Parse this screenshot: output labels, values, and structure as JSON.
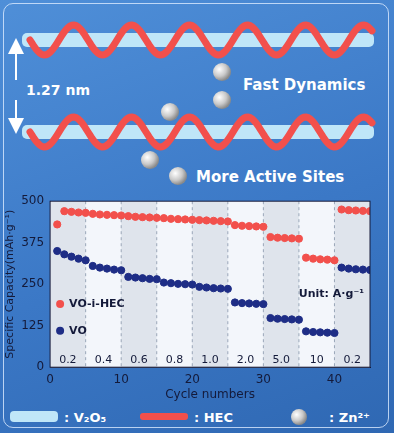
{
  "chart_data": {
    "type": "scatter",
    "x": [
      1,
      2,
      3,
      4,
      5,
      6,
      7,
      8,
      9,
      10,
      11,
      12,
      13,
      14,
      15,
      16,
      17,
      18,
      19,
      20,
      21,
      22,
      23,
      24,
      25,
      26,
      27,
      28,
      29,
      30,
      31,
      32,
      33,
      34,
      35,
      36,
      37,
      38,
      39,
      40,
      41,
      42,
      43,
      44,
      45
    ],
    "series": [
      {
        "name": "VO-i-HEC",
        "color": "#f2504c",
        "marker": "circle",
        "values": [
          430,
          470,
          468,
          466,
          465,
          462,
          460,
          459,
          458,
          457,
          455,
          453,
          452,
          451,
          450,
          449,
          447,
          446,
          445,
          444,
          443,
          442,
          441,
          440,
          439,
          428,
          426,
          425,
          424,
          423,
          392,
          390,
          389,
          388,
          387,
          330,
          327,
          325,
          324,
          322,
          475,
          473,
          472,
          471,
          470
        ]
      },
      {
        "name": "VO",
        "color": "#1e2d86",
        "marker": "circle",
        "values": [
          350,
          340,
          333,
          327,
          322,
          305,
          300,
          297,
          294,
          292,
          272,
          270,
          268,
          266,
          265,
          255,
          253,
          251,
          250,
          249,
          242,
          240,
          238,
          237,
          236,
          195,
          193,
          192,
          191,
          190,
          148,
          146,
          145,
          144,
          143,
          108,
          106,
          105,
          104,
          103,
          300,
          297,
          295,
          294,
          293
        ]
      }
    ],
    "xlabel": "Cycle numbers",
    "ylabel": "Specific Capacity(mAh·g⁻¹)",
    "xlim": [
      0,
      45
    ],
    "ylim": [
      0,
      500
    ],
    "xticks": [
      0,
      10,
      20,
      30,
      40
    ],
    "yticks": [
      0,
      125,
      250,
      375,
      500
    ],
    "grid": false,
    "legend": "lower left",
    "current_segments": [
      {
        "start": 0,
        "end": 5,
        "label": "0.2"
      },
      {
        "start": 5,
        "end": 10,
        "label": "0.4"
      },
      {
        "start": 10,
        "end": 15,
        "label": "0.6"
      },
      {
        "start": 15,
        "end": 20,
        "label": "0.8"
      },
      {
        "start": 20,
        "end": 25,
        "label": "1.0"
      },
      {
        "start": 25,
        "end": 30,
        "label": "2.0"
      },
      {
        "start": 30,
        "end": 35,
        "label": "5.0"
      },
      {
        "start": 35,
        "end": 40,
        "label": "10"
      },
      {
        "start": 40,
        "end": 45,
        "label": "0.2"
      }
    ],
    "unit_label": "Unit: A·g⁻¹"
  },
  "diagram": {
    "spacing_label": "1.27 nm",
    "annotations": [
      "Fast Dynamics",
      "More Active Sites"
    ],
    "key": [
      ": V₂O₅",
      ": HEC",
      ": Zn²⁺"
    ]
  }
}
